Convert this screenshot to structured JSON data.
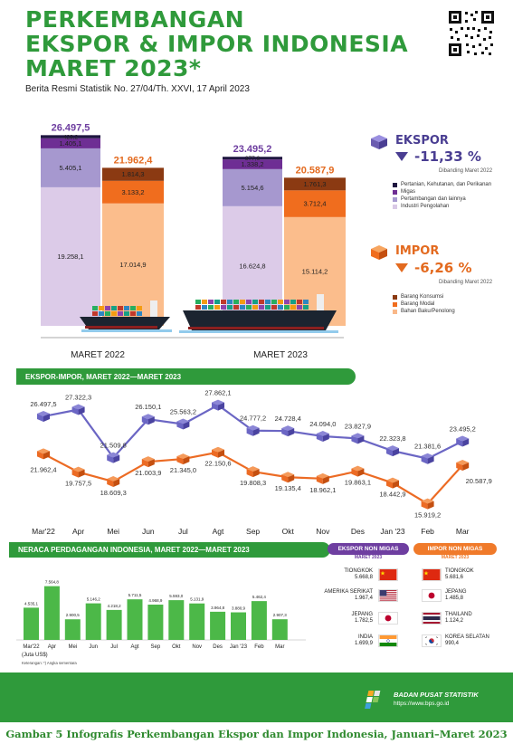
{
  "header": {
    "title_lines": [
      "PERKEMBANGAN",
      "EKSPOR & IMPOR INDONESIA",
      "MARET 2023*"
    ],
    "subtitle": "Berita Resmi Statistik No. 27/04/Th. XXVI, 17 April 2023"
  },
  "colors": {
    "green": "#2f9a3b",
    "export_purple": "#6b5cb0",
    "import_orange": "#f06d1e",
    "export_line": "#6b66c4",
    "import_line": "#ec6b24"
  },
  "ekspor": {
    "title": "EKSPOR",
    "change": "-11,33 %",
    "note": "Dibanding Maret 2022",
    "legend": [
      "Pertanian, Kehutanan, dan Perikanan",
      "Migas",
      "Pertambangan dan lainnya",
      "Industri Pengolahan"
    ]
  },
  "impor": {
    "title": "IMPOR",
    "change": "-6,26 %",
    "note": "Dibanding Maret 2022",
    "legend": [
      "Barang Konsumsi",
      "Barang Modal",
      "Bahan Baku/Penolong"
    ]
  },
  "periods": [
    "MARET 2022",
    "MARET 2023"
  ],
  "section_titles": {
    "line_chart": "EKSPOR-IMPOR, MARET 2022—MARET 2023",
    "balance_chart": "NERACA PERDAGANGAN INDONESIA, MARET 2022—MARET 2023",
    "export_nonmigas": "EKSPOR NON MIGAS",
    "import_nonmigas": "IMPOR NON MIGAS",
    "nonmigas_period": "MARET 2023"
  },
  "chart_data": [
    {
      "type": "bar",
      "stacked": true,
      "categories": [
        "MARET 2022",
        "MARET 2023"
      ],
      "totals_ekspor": [
        "26.497,5",
        "23.495,2"
      ],
      "totals_impor": [
        "21.962,4",
        "20.587,9"
      ],
      "series": [
        {
          "name": "Industri Pengolahan",
          "group": "ekspor",
          "values": [
            19258.1,
            16624.8
          ],
          "labels": [
            "19.258,1",
            "16.624,8"
          ]
        },
        {
          "name": "Pertambangan dan lainnya",
          "group": "ekspor",
          "values": [
            5405.1,
            5154.6
          ],
          "labels": [
            "5.405,1",
            "5.154,6"
          ]
        },
        {
          "name": "Migas",
          "group": "ekspor",
          "values": [
            1405.1,
            1338.2
          ],
          "labels": [
            "1.405,1",
            "1.338,2"
          ]
        },
        {
          "name": "Pertanian, Kehutanan, dan Perikanan",
          "group": "ekspor",
          "values": [
            429.2,
            377.6
          ],
          "labels": [
            "429,2",
            "377,6"
          ]
        },
        {
          "name": "Bahan Baku/Penolong",
          "group": "impor",
          "values": [
            17014.9,
            15114.2
          ],
          "labels": [
            "17.014,9",
            "15.114,2"
          ]
        },
        {
          "name": "Barang Modal",
          "group": "impor",
          "values": [
            3133.2,
            3712.4
          ],
          "labels": [
            "3.133,2",
            "3.712,4"
          ]
        },
        {
          "name": "Barang Konsumsi",
          "group": "impor",
          "values": [
            1814.3,
            1761.3
          ],
          "labels": [
            "1.814,3",
            "1.761,3"
          ]
        }
      ]
    },
    {
      "type": "line",
      "title": "EKSPOR-IMPOR, MARET 2022—MARET 2023",
      "categories": [
        "Mar'22",
        "Apr",
        "Mei",
        "Jun",
        "Jul",
        "Agt",
        "Sep",
        "Okt",
        "Nov",
        "Des",
        "Jan '23",
        "Feb",
        "Mar"
      ],
      "series": [
        {
          "name": "Ekspor",
          "values": [
            26497.5,
            27322.3,
            21509.8,
            26150.1,
            25563.2,
            27862.1,
            24777.2,
            24728.4,
            24094.0,
            23827.9,
            22323.8,
            21381.6,
            23495.2
          ],
          "labels": [
            "26.497,5",
            "27.322,3",
            "21.509,8",
            "26.150,1",
            "25.563,2",
            "27.862,1",
            "24.777,2",
            "24.728,4",
            "24.094,0",
            "23.827,9",
            "22.323,8",
            "21.381,6",
            "23.495,2"
          ]
        },
        {
          "name": "Impor",
          "values": [
            21962.4,
            19757.5,
            18609.3,
            21003.9,
            21345.0,
            22150.6,
            19808.3,
            19135.4,
            18962.1,
            19863.1,
            18442.9,
            15919.2,
            20587.9
          ],
          "labels": [
            "21.962,4",
            "19.757,5",
            "18.609,3",
            "21.003,9",
            "21.345,0",
            "22.150,6",
            "19.808,3",
            "19.135,4",
            "18.962,1",
            "19.863,1",
            "18.442,9",
            "15.919,2",
            "20.587,9"
          ]
        }
      ]
    },
    {
      "type": "bar",
      "title": "NERACA PERDAGANGAN INDONESIA, MARET 2022—MARET 2023",
      "categories": [
        "Mar'22",
        "Apr",
        "Mei",
        "Jun",
        "Jul",
        "Agt",
        "Sep",
        "Okt",
        "Nov",
        "Des",
        "Jan '23",
        "Feb",
        "Mar"
      ],
      "values": [
        4535.1,
        7564.8,
        2900.5,
        5146.2,
        4218.2,
        5711.5,
        4968.9,
        5593.0,
        5131.9,
        3964.8,
        3880.9,
        5462.4,
        2907.3
      ],
      "labels": [
        "4.535,1",
        "7.564,8",
        "2.900,5",
        "5.146,2",
        "4.218,2",
        "5.711,5",
        "4.968,9",
        "5.593,0",
        "5.131,9",
        "3.964,8",
        "3.880,9",
        "5.462,4",
        "2.907,3"
      ],
      "unit_note": "(Juta US$)",
      "footnote": "Keterangan: *) Angka sementara"
    }
  ],
  "export_partners": [
    {
      "name": "TIONGKOK",
      "value": "5.668,8",
      "flag": "china"
    },
    {
      "name": "AMERIKA SERIKAT",
      "value": "1.967,4",
      "flag": "usa"
    },
    {
      "name": "JEPANG",
      "value": "1.782,5",
      "flag": "japan"
    },
    {
      "name": "INDIA",
      "value": "1.699,9",
      "flag": "india"
    }
  ],
  "import_partners": [
    {
      "name": "TIONGKOK",
      "value": "5.681,6",
      "flag": "china"
    },
    {
      "name": "JEPANG",
      "value": "1.485,8",
      "flag": "japan"
    },
    {
      "name": "THAILAND",
      "value": "1.124,2",
      "flag": "thailand"
    },
    {
      "name": "KOREA SELATAN",
      "value": "990,4",
      "flag": "korea"
    }
  ],
  "footer": {
    "org": "BADAN PUSAT STATISTIK",
    "url": "https://www.bps.go.id",
    "caption": "Gambar 5    Infografis Perkembangan Ekspor dan Impor Indonesia, Januari–Maret 2023"
  }
}
